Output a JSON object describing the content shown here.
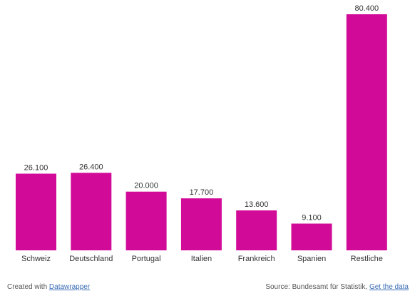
{
  "colors": {
    "bar": "#d10a97"
  },
  "chart_data": {
    "type": "bar",
    "categories": [
      "Schweiz",
      "Deutschland",
      "Portugal",
      "Italien",
      "Frankreich",
      "Spanien",
      "Restliche"
    ],
    "values": [
      26100,
      26400,
      20000,
      17700,
      13600,
      9100,
      80400
    ],
    "value_labels": [
      "26.100",
      "26.400",
      "20.000",
      "17.700",
      "13.600",
      "9.100",
      "80.400"
    ],
    "ylim": [
      0,
      80400
    ],
    "grid": false,
    "legend": "none"
  },
  "footer": {
    "created_with": "Created with",
    "datawrapper_link": "Datawrapper",
    "source_prefix": "Source: Bundesamt für Statistik,",
    "get_data_link": "Get the data"
  }
}
